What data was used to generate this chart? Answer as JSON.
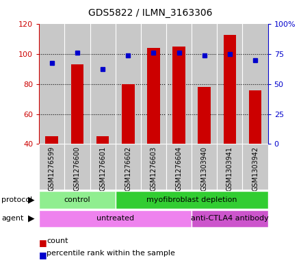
{
  "title": "GDS5822 / ILMN_3163306",
  "samples": [
    "GSM1276599",
    "GSM1276600",
    "GSM1276601",
    "GSM1276602",
    "GSM1276603",
    "GSM1276604",
    "GSM1303940",
    "GSM1303941",
    "GSM1303942"
  ],
  "counts": [
    45,
    93,
    45,
    80,
    104,
    105,
    78,
    113,
    76
  ],
  "percentiles_left_scale": [
    94,
    101,
    90,
    99,
    101,
    101,
    99,
    100,
    96
  ],
  "ylim_left": [
    40,
    120
  ],
  "ylim_right": [
    0,
    100
  ],
  "yticks_left": [
    40,
    60,
    80,
    100,
    120
  ],
  "yticks_right": [
    0,
    25,
    50,
    75,
    100
  ],
  "ytick_labels_right": [
    "0",
    "25",
    "50",
    "75",
    "100%"
  ],
  "protocol_groups": [
    {
      "label": "control",
      "start": 0,
      "end": 3,
      "color": "#90EE90"
    },
    {
      "label": "myofibroblast depletion",
      "start": 3,
      "end": 9,
      "color": "#32CD32"
    }
  ],
  "agent_groups": [
    {
      "label": "untreated",
      "start": 0,
      "end": 6,
      "color": "#EE82EE"
    },
    {
      "label": "anti-CTLA4 antibody",
      "start": 6,
      "end": 9,
      "color": "#CC55CC"
    }
  ],
  "bar_color": "#CC0000",
  "dot_color": "#0000CC",
  "bar_width": 0.5,
  "grid_color": "#000000",
  "bg_color": "#C8C8C8",
  "tick_label_bg": "#C8C8C8"
}
